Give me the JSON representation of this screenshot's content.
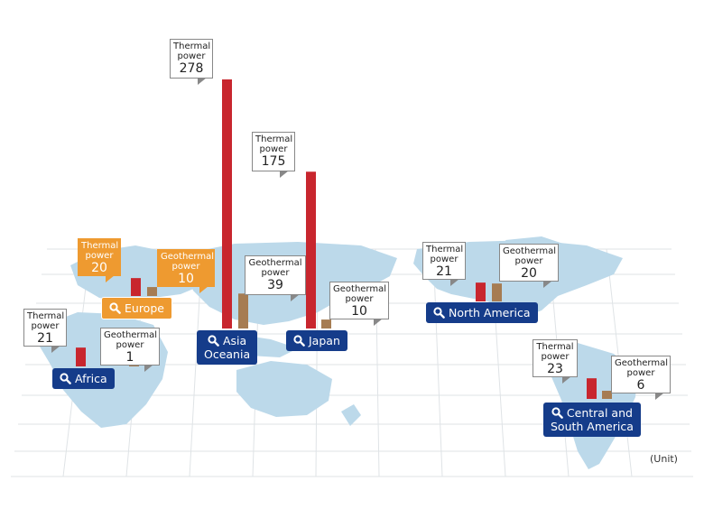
{
  "unit_label": "(Unit)",
  "colors": {
    "thermal": "#c8262e",
    "geothermal": "#a67c52",
    "region_blue": "#153c8a",
    "highlight": "#ee9a30",
    "map": "#bcd9ea",
    "grid": "#dfe3e6"
  },
  "icons": {
    "region_button": "magnifier-icon"
  },
  "chart_data": {
    "type": "bar",
    "series": [
      {
        "name": "Thermal power",
        "key": "thermal"
      },
      {
        "name": "Geothermal power",
        "key": "geothermal"
      }
    ],
    "regions": [
      {
        "id": "africa",
        "name": "Africa",
        "thermal": 21,
        "geothermal": 1,
        "highlight": false
      },
      {
        "id": "europe",
        "name": "Europe",
        "thermal": 20,
        "geothermal": 10,
        "highlight": true
      },
      {
        "id": "asia-oceania",
        "name": "Asia\nOceania",
        "thermal": 278,
        "geothermal": 39,
        "highlight": false
      },
      {
        "id": "japan",
        "name": "Japan",
        "thermal": 175,
        "geothermal": 10,
        "highlight": false
      },
      {
        "id": "north-america",
        "name": "North America",
        "thermal": 21,
        "geothermal": 20,
        "highlight": false
      },
      {
        "id": "central-south-america",
        "name": "Central and\nSouth America",
        "thermal": 23,
        "geothermal": 6,
        "highlight": false
      }
    ]
  }
}
